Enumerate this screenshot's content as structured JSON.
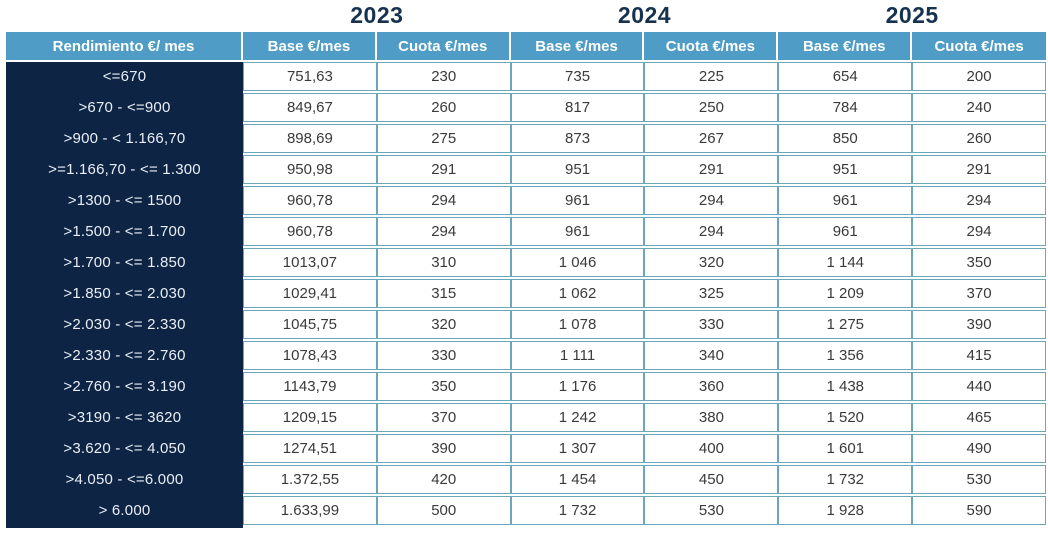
{
  "title_years": [
    "2023",
    "2024",
    "2025"
  ],
  "column_headers": {
    "rendimiento": "Rendimiento €/ mes",
    "base": "Base €/mes",
    "cuota": "Cuota €/mes"
  },
  "colors": {
    "header_bar": "#4f9dc6",
    "range_column_bg": "#0d2444",
    "cell_border": "#6ba6bb",
    "year_text": "#16324f",
    "cell_text": "#3a3a3a"
  },
  "chart_data": {
    "type": "table",
    "title": "Cuotas de autónomos por tramos de rendimiento 2023-2025",
    "year_groups": [
      "2023",
      "2024",
      "2025"
    ],
    "columns": [
      "Rendimiento €/ mes",
      "Base €/mes (2023)",
      "Cuota €/mes (2023)",
      "Base €/mes (2024)",
      "Cuota €/mes (2024)",
      "Base €/mes (2025)",
      "Cuota €/mes (2025)"
    ],
    "rows": [
      [
        "<=670",
        "751,63",
        "230",
        "735",
        "225",
        "654",
        "200"
      ],
      [
        ">670 -  <=900",
        "849,67",
        "260",
        "817",
        "250",
        "784",
        "240"
      ],
      [
        ">900 - < 1.166,70",
        "898,69",
        "275",
        "873",
        "267",
        "850",
        "260"
      ],
      [
        ">=1.166,70 - <= 1.300",
        "950,98",
        "291",
        "951",
        "291",
        "951",
        "291"
      ],
      [
        ">1300 -  <= 1500",
        "960,78",
        "294",
        "961",
        "294",
        "961",
        "294"
      ],
      [
        ">1.500  - <= 1.700",
        "960,78",
        "294",
        "961",
        "294",
        "961",
        "294"
      ],
      [
        ">1.700  - <= 1.850",
        "1013,07",
        "310",
        "1 046",
        "320",
        "1 144",
        "350"
      ],
      [
        ">1.850  - <= 2.030",
        "1029,41",
        "315",
        "1 062",
        "325",
        "1 209",
        "370"
      ],
      [
        ">2.030  - <= 2.330",
        "1045,75",
        "320",
        "1 078",
        "330",
        "1 275",
        "390"
      ],
      [
        ">2.330 - <= 2.760",
        "1078,43",
        "330",
        "1 111",
        "340",
        "1 356",
        "415"
      ],
      [
        ">2.760  - <= 3.190",
        "1143,79",
        "350",
        "1 176",
        "360",
        "1 438",
        "440"
      ],
      [
        ">3190 - <= 3620",
        "1209,15",
        "370",
        "1 242",
        "380",
        "1 520",
        "465"
      ],
      [
        ">3.620  - <= 4.050",
        "1274,51",
        "390",
        "1 307",
        "400",
        "1 601",
        "490"
      ],
      [
        ">4.050 - <=6.000",
        "1.372,55",
        "420",
        "1 454",
        "450",
        "1 732",
        "530"
      ],
      [
        "> 6.000",
        "1.633,99",
        "500",
        "1 732",
        "530",
        "1 928",
        "590"
      ]
    ]
  }
}
